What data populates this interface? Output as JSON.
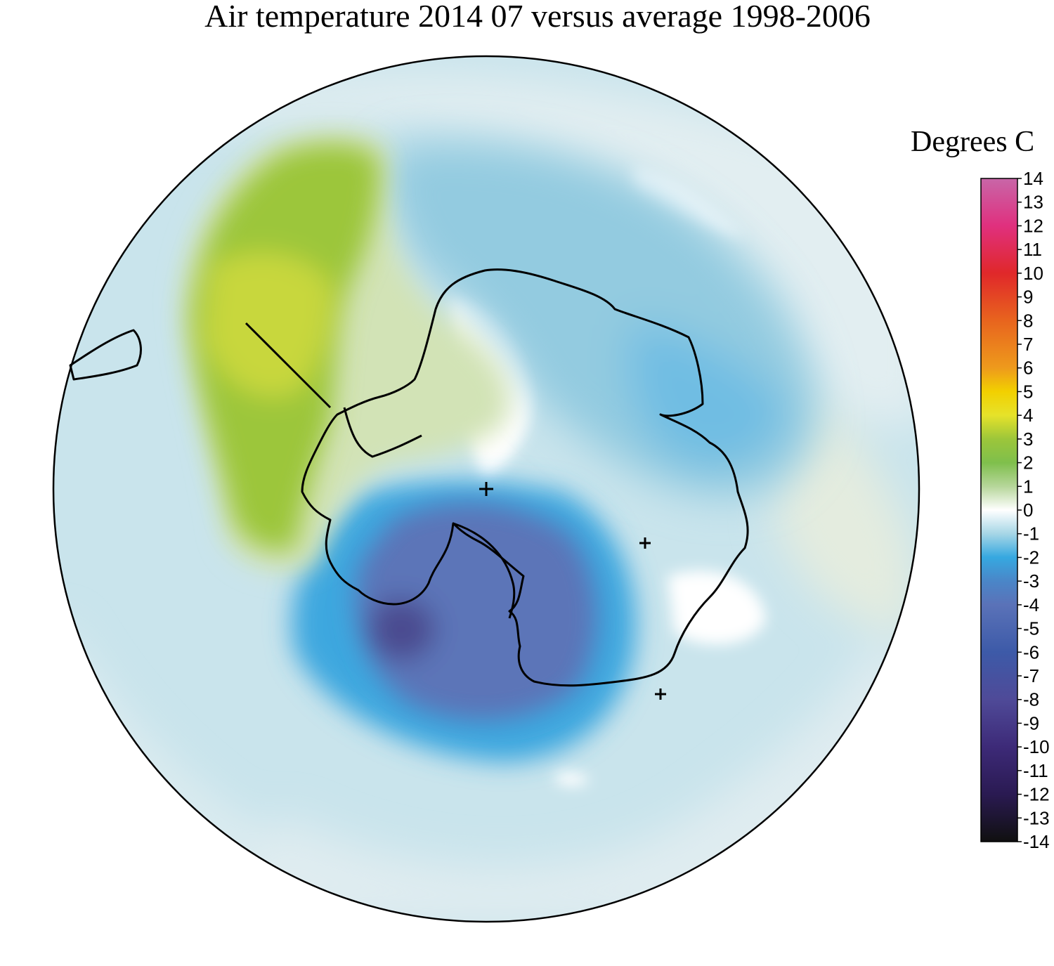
{
  "title": "Air temperature 2014 07 versus average 1998-2006",
  "legend": {
    "title": "Degrees C",
    "min": -14,
    "max": 14,
    "ticks": [
      "14",
      "13",
      "12",
      "11",
      "10",
      "9",
      "8",
      "7",
      "6",
      "5",
      "4",
      "3",
      "2",
      "1",
      "0",
      "-1",
      "-2",
      "-3",
      "-4",
      "-5",
      "-6",
      "-7",
      "-8",
      "-9",
      "-10",
      "-11",
      "-12",
      "-13",
      "-14"
    ],
    "color_stops": [
      {
        "value": -14,
        "color": "#101010"
      },
      {
        "value": -12,
        "color": "#2a1a52"
      },
      {
        "value": -10,
        "color": "#3d2a78"
      },
      {
        "value": -8,
        "color": "#4f4a98"
      },
      {
        "value": -6,
        "color": "#3d5aa8"
      },
      {
        "value": -4,
        "color": "#5a72b8"
      },
      {
        "value": -3,
        "color": "#4a86c8"
      },
      {
        "value": -2,
        "color": "#36a8e0"
      },
      {
        "value": -1,
        "color": "#a6d6e6"
      },
      {
        "value": 0,
        "color": "#ffffff"
      },
      {
        "value": 1,
        "color": "#b6d69a"
      },
      {
        "value": 2,
        "color": "#7fbf4c"
      },
      {
        "value": 3,
        "color": "#9cc63a"
      },
      {
        "value": 4,
        "color": "#e6e22a"
      },
      {
        "value": 5,
        "color": "#f2d000"
      },
      {
        "value": 6,
        "color": "#ee9a1c"
      },
      {
        "value": 8,
        "color": "#e8641e"
      },
      {
        "value": 10,
        "color": "#e0282a"
      },
      {
        "value": 12,
        "color": "#e0307e"
      },
      {
        "value": 14,
        "color": "#c866a8"
      }
    ]
  },
  "map": {
    "projection": "south-polar-stereographic",
    "background_color": "#c9e4ec",
    "features": [
      {
        "name": "cold-anomaly-core",
        "anomaly_c": -6,
        "color": "#5b63a8"
      },
      {
        "name": "cold-anomaly-ring",
        "anomaly_c": -3,
        "color": "#3da7df"
      },
      {
        "name": "east-antarctica-cool",
        "anomaly_c": -2,
        "color": "#7ec2e2"
      },
      {
        "name": "warm-anomaly-peninsula",
        "anomaly_c": 3,
        "color": "#9cc63a"
      },
      {
        "name": "warm-anomaly-light",
        "anomaly_c": 1,
        "color": "#d2e3b6"
      }
    ]
  }
}
